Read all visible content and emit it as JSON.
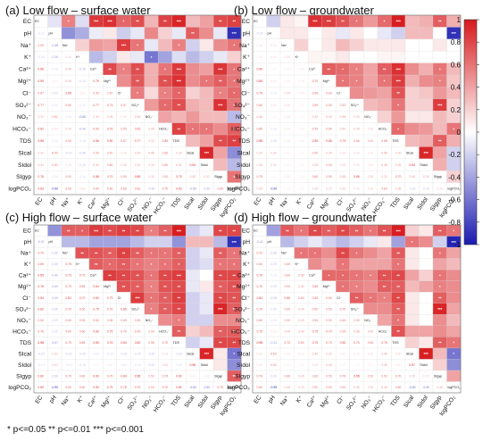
{
  "variables": [
    "EC",
    "pH",
    "Na⁺",
    "K⁺",
    "Ca²⁺",
    "Mg²⁺",
    "Cl⁻",
    "SO₄²⁻",
    "NO₃⁻",
    "HCO₃⁻",
    "TDS",
    "SIcal",
    "SIdol",
    "SIgyp",
    "logPCO₂"
  ],
  "colorbar": {
    "ticks": [
      "1",
      "0.8",
      "0.6",
      "0.4",
      "0.2",
      "0",
      "-0.2",
      "-0.4",
      "-0.6",
      "-0.8",
      "-1"
    ],
    "pos_color": "#d7191c",
    "neg_color": "#1a1ab0",
    "mid_color": "#ffffff"
  },
  "footnote": "* p<=0.05  ** p<=0.01  *** p<=0.001",
  "chart_data": [
    {
      "type": "heatmap",
      "panel": "(a)",
      "title": "Low flow – surface water",
      "matrix": [
        [
          1,
          -0.12,
          0.55,
          -0.15,
          0.86,
          0.9,
          0.67,
          0.77,
          0.32,
          0.82,
          0.95,
          0.3,
          0.41,
          0.78,
          0.83
        ],
        [
          -0.12,
          1,
          -0.48,
          -0.36,
          -0.08,
          0.1,
          -0.22,
          -0.1,
          0.52,
          0.2,
          -0.1,
          0.7,
          0.5,
          -0.1,
          -0.9
        ],
        [
          0.55,
          -0.48,
          1,
          0.2,
          0.44,
          0.4,
          0.85,
          0.6,
          -0.1,
          0.3,
          0.55,
          -0.2,
          0.1,
          0.5,
          0.6
        ],
        [
          -0.15,
          -0.36,
          0.2,
          1,
          -0.3,
          -0.2,
          0.1,
          -0.1,
          -0.6,
          -0.4,
          -0.15,
          -0.3,
          -0.2,
          -0.1,
          0.2
        ],
        [
          0.86,
          -0.08,
          0.44,
          -0.3,
          1,
          0.79,
          0.55,
          0.77,
          0.34,
          0.6,
          0.86,
          0.5,
          0.42,
          0.88,
          0.6
        ],
        [
          0.9,
          0.1,
          0.4,
          -0.2,
          0.79,
          1,
          0.5,
          0.73,
          0.35,
          0.76,
          0.9,
          0.5,
          0.6,
          0.7,
          0.6
        ],
        [
          0.67,
          -0.22,
          0.85,
          0.1,
          0.55,
          0.5,
          1,
          0.57,
          0.16,
          0.55,
          0.67,
          0.2,
          0.3,
          0.55,
          0.65
        ],
        [
          0.77,
          -0.1,
          0.6,
          -0.1,
          0.77,
          0.73,
          0.57,
          1,
          0.44,
          0.65,
          0.77,
          0.35,
          0.3,
          0.89,
          0.6
        ],
        [
          0.32,
          0.52,
          -0.1,
          -0.6,
          0.34,
          0.35,
          0.16,
          0.44,
          1,
          0.4,
          0.32,
          0.45,
          0.3,
          0.3,
          -0.3
        ],
        [
          0.82,
          0.2,
          0.3,
          -0.4,
          0.6,
          0.76,
          0.55,
          0.65,
          0.4,
          1,
          0.82,
          0.6,
          0.6,
          0.5,
          0.7
        ],
        [
          0.95,
          -0.1,
          0.55,
          -0.15,
          0.86,
          0.9,
          0.67,
          0.77,
          0.32,
          0.82,
          1,
          0.3,
          0.41,
          0.78,
          0.83
        ],
        [
          0.3,
          0.7,
          -0.2,
          -0.3,
          0.5,
          0.5,
          0.2,
          0.35,
          0.45,
          0.6,
          0.3,
          1,
          0.94,
          0.4,
          -0.5
        ],
        [
          0.41,
          0.5,
          0.1,
          -0.2,
          0.42,
          0.6,
          0.3,
          0.3,
          0.3,
          0.6,
          0.41,
          0.94,
          1,
          0.3,
          -0.3
        ],
        [
          0.78,
          -0.1,
          0.5,
          -0.1,
          0.88,
          0.7,
          0.55,
          0.89,
          0.3,
          0.5,
          0.78,
          0.4,
          0.3,
          1,
          0.6
        ],
        [
          0.83,
          -0.9,
          0.6,
          0.2,
          0.6,
          0.6,
          0.65,
          0.6,
          -0.3,
          0.7,
          0.83,
          -0.5,
          -0.3,
          0.6,
          1
        ]
      ]
    },
    {
      "type": "heatmap",
      "panel": "(b)",
      "title": "Low flow – groundwater",
      "matrix": [
        [
          1,
          -0.2,
          0.1,
          0.05,
          0.9,
          0.85,
          0.75,
          0.6,
          0.45,
          0.65,
          0.98,
          0.3,
          0.35,
          0.7,
          0.35
        ],
        [
          -0.2,
          1,
          0.1,
          0.1,
          0.0,
          0.1,
          -0.1,
          0.1,
          0.0,
          -0.1,
          -0.2,
          0.3,
          0.3,
          0.0,
          -0.9
        ],
        [
          0.1,
          0.1,
          1,
          0.2,
          0.0,
          0.1,
          0.3,
          0.2,
          0.1,
          0.1,
          0.1,
          0.0,
          0.0,
          0.1,
          0.0
        ],
        [
          0.05,
          0.1,
          0.2,
          1,
          0.05,
          0.05,
          0.1,
          0.0,
          0.0,
          0.05,
          0.05,
          0.0,
          0.0,
          0.0,
          0.0
        ],
        [
          0.9,
          0.0,
          0.0,
          0.05,
          1,
          0.7,
          0.65,
          0.55,
          0.4,
          0.7,
          0.9,
          0.5,
          0.35,
          0.6,
          0.3
        ],
        [
          0.85,
          0.1,
          0.1,
          0.05,
          0.7,
          1,
          0.6,
          0.55,
          0.4,
          0.6,
          0.85,
          0.35,
          0.5,
          0.55,
          0.25
        ],
        [
          0.75,
          -0.1,
          0.3,
          0.1,
          0.65,
          0.6,
          1,
          0.5,
          0.45,
          0.4,
          0.75,
          0.2,
          0.25,
          0.45,
          0.3
        ],
        [
          0.6,
          0.1,
          0.2,
          0.0,
          0.55,
          0.55,
          0.5,
          1,
          0.3,
          0.35,
          0.6,
          0.2,
          0.2,
          0.85,
          0.2
        ],
        [
          0.45,
          0.0,
          0.1,
          0.0,
          0.4,
          0.4,
          0.45,
          0.3,
          1,
          0.2,
          0.45,
          0.1,
          0.1,
          0.3,
          0.2
        ],
        [
          0.65,
          -0.1,
          0.1,
          0.05,
          0.7,
          0.6,
          0.4,
          0.35,
          0.2,
          1,
          0.65,
          0.5,
          0.45,
          0.3,
          0.6
        ],
        [
          0.98,
          -0.2,
          0.1,
          0.05,
          0.9,
          0.85,
          0.75,
          0.6,
          0.45,
          0.65,
          1,
          0.3,
          0.35,
          0.7,
          0.35
        ],
        [
          0.3,
          0.3,
          0.0,
          0.0,
          0.5,
          0.35,
          0.2,
          0.2,
          0.1,
          0.5,
          0.3,
          1,
          0.94,
          0.4,
          -0.2
        ],
        [
          0.35,
          0.3,
          0.0,
          0.0,
          0.35,
          0.5,
          0.25,
          0.2,
          0.1,
          0.45,
          0.35,
          0.94,
          1,
          0.35,
          -0.2
        ],
        [
          0.7,
          0.0,
          0.1,
          0.0,
          0.6,
          0.55,
          0.45,
          0.85,
          0.3,
          0.3,
          0.7,
          0.4,
          0.35,
          1,
          0.2
        ],
        [
          0.35,
          -0.9,
          0.0,
          0.0,
          0.3,
          0.25,
          0.3,
          0.2,
          0.2,
          0.6,
          0.35,
          -0.2,
          -0.2,
          0.2,
          1
        ]
      ]
    },
    {
      "type": "heatmap",
      "panel": "(c)",
      "title": "High flow – surface water",
      "matrix": [
        [
          1,
          -0.47,
          0.7,
          0.69,
          0.85,
          0.78,
          0.84,
          0.8,
          0.56,
          0.7,
          0.98,
          -0.2,
          -0.1,
          0.8,
          0.8
        ],
        [
          -0.47,
          1,
          -0.3,
          -0.3,
          -0.4,
          -0.4,
          -0.4,
          -0.3,
          -0.2,
          -0.2,
          -0.47,
          0.3,
          0.3,
          -0.3,
          -0.9
        ],
        [
          0.7,
          -0.3,
          1,
          0.75,
          0.75,
          0.7,
          0.82,
          0.7,
          0.6,
          0.6,
          0.7,
          -0.2,
          -0.1,
          0.7,
          0.6
        ],
        [
          0.69,
          -0.3,
          0.75,
          1,
          0.7,
          0.65,
          0.7,
          0.6,
          0.55,
          0.6,
          0.69,
          -0.2,
          -0.15,
          0.6,
          0.6
        ],
        [
          0.85,
          -0.4,
          0.75,
          0.7,
          1,
          0.84,
          0.8,
          0.75,
          0.6,
          0.8,
          0.85,
          -0.1,
          0.0,
          0.8,
          0.8
        ],
        [
          0.78,
          -0.4,
          0.7,
          0.65,
          0.84,
          1,
          0.75,
          0.7,
          0.55,
          0.75,
          0.78,
          -0.1,
          0.1,
          0.7,
          0.75
        ],
        [
          0.84,
          -0.4,
          0.82,
          0.7,
          0.8,
          0.75,
          1,
          0.85,
          0.6,
          0.7,
          0.84,
          -0.2,
          -0.1,
          0.8,
          0.75
        ],
        [
          0.8,
          -0.3,
          0.7,
          0.6,
          0.75,
          0.7,
          0.85,
          1,
          0.55,
          0.7,
          0.8,
          -0.2,
          -0.1,
          0.95,
          0.7
        ],
        [
          0.56,
          -0.2,
          0.6,
          0.55,
          0.6,
          0.55,
          0.6,
          0.55,
          1,
          0.5,
          0.56,
          -0.2,
          -0.2,
          0.5,
          0.5
        ],
        [
          0.7,
          -0.2,
          0.6,
          0.6,
          0.8,
          0.75,
          0.7,
          0.7,
          0.5,
          1,
          0.7,
          0.2,
          0.3,
          0.7,
          0.7
        ],
        [
          0.98,
          -0.47,
          0.7,
          0.69,
          0.85,
          0.78,
          0.84,
          0.8,
          0.56,
          0.7,
          1,
          -0.2,
          -0.1,
          0.8,
          0.8
        ],
        [
          -0.2,
          0.3,
          -0.2,
          -0.2,
          -0.1,
          -0.1,
          -0.2,
          -0.2,
          -0.2,
          0.2,
          -0.2,
          1,
          0.95,
          0.1,
          -0.6
        ],
        [
          -0.1,
          0.3,
          -0.1,
          -0.15,
          0.0,
          0.1,
          -0.1,
          -0.1,
          -0.2,
          0.3,
          -0.1,
          0.95,
          1,
          0.1,
          -0.5
        ],
        [
          0.8,
          -0.3,
          0.7,
          0.6,
          0.8,
          0.7,
          0.8,
          0.95,
          0.5,
          0.7,
          0.8,
          0.1,
          0.1,
          1,
          0.7
        ],
        [
          0.8,
          -0.9,
          0.6,
          0.6,
          0.8,
          0.75,
          0.75,
          0.7,
          0.5,
          0.7,
          0.8,
          -0.6,
          -0.5,
          0.7,
          1
        ]
      ]
    },
    {
      "type": "heatmap",
      "panel": "(d)",
      "title": "High flow – groundwater",
      "matrix": [
        [
          1,
          -0.41,
          0.72,
          0.6,
          0.79,
          0.7,
          0.8,
          0.7,
          0.6,
          0.75,
          0.98,
          0.2,
          0.1,
          0.7,
          0.6
        ],
        [
          -0.41,
          1,
          -0.3,
          -0.2,
          -0.1,
          -0.2,
          -0.3,
          -0.2,
          -0.1,
          0.1,
          -0.41,
          0.6,
          0.5,
          -0.2,
          -0.95
        ],
        [
          0.72,
          -0.3,
          1,
          0.6,
          0.6,
          0.5,
          0.8,
          0.6,
          0.5,
          0.4,
          0.72,
          0.1,
          0.0,
          0.6,
          0.4
        ],
        [
          0.6,
          -0.2,
          0.6,
          1,
          0.5,
          0.4,
          0.6,
          0.4,
          0.4,
          0.4,
          0.6,
          0.1,
          0.0,
          0.4,
          0.3
        ],
        [
          0.79,
          -0.1,
          0.6,
          0.5,
          1,
          0.65,
          0.65,
          0.6,
          0.55,
          0.75,
          0.79,
          0.4,
          0.2,
          0.6,
          0.5
        ],
        [
          0.7,
          -0.2,
          0.5,
          0.4,
          0.65,
          1,
          0.6,
          0.55,
          0.5,
          0.7,
          0.7,
          0.3,
          0.4,
          0.55,
          0.5
        ],
        [
          0.8,
          -0.3,
          0.8,
          0.6,
          0.65,
          0.6,
          1,
          0.7,
          0.6,
          0.55,
          0.8,
          0.1,
          0.0,
          0.7,
          0.5
        ],
        [
          0.7,
          -0.2,
          0.6,
          0.4,
          0.6,
          0.55,
          0.7,
          1,
          0.5,
          0.5,
          0.7,
          0.1,
          0.0,
          0.95,
          0.4
        ],
        [
          0.6,
          -0.1,
          0.5,
          0.4,
          0.55,
          0.5,
          0.6,
          0.5,
          1,
          0.4,
          0.6,
          0.1,
          0.0,
          0.5,
          0.3
        ],
        [
          0.75,
          0.1,
          0.4,
          0.4,
          0.75,
          0.7,
          0.55,
          0.5,
          0.4,
          1,
          0.75,
          0.4,
          0.4,
          0.5,
          0.4
        ],
        [
          0.98,
          -0.41,
          0.72,
          0.6,
          0.79,
          0.7,
          0.8,
          0.7,
          0.6,
          0.75,
          1,
          0.2,
          0.1,
          0.7,
          0.6
        ],
        [
          0.2,
          0.6,
          0.1,
          0.1,
          0.4,
          0.3,
          0.1,
          0.1,
          0.1,
          0.4,
          0.2,
          1,
          0.97,
          0.3,
          -0.6
        ],
        [
          0.1,
          0.5,
          0.0,
          0.0,
          0.2,
          0.4,
          0.0,
          0.0,
          0.0,
          0.4,
          0.1,
          0.97,
          1,
          0.2,
          -0.5
        ],
        [
          0.7,
          -0.2,
          0.6,
          0.4,
          0.6,
          0.55,
          0.7,
          0.95,
          0.5,
          0.5,
          0.7,
          0.3,
          0.2,
          1,
          0.4
        ],
        [
          0.6,
          -0.95,
          0.4,
          0.3,
          0.5,
          0.5,
          0.5,
          0.4,
          0.3,
          0.4,
          0.6,
          -0.6,
          -0.5,
          0.4,
          1
        ]
      ]
    }
  ]
}
